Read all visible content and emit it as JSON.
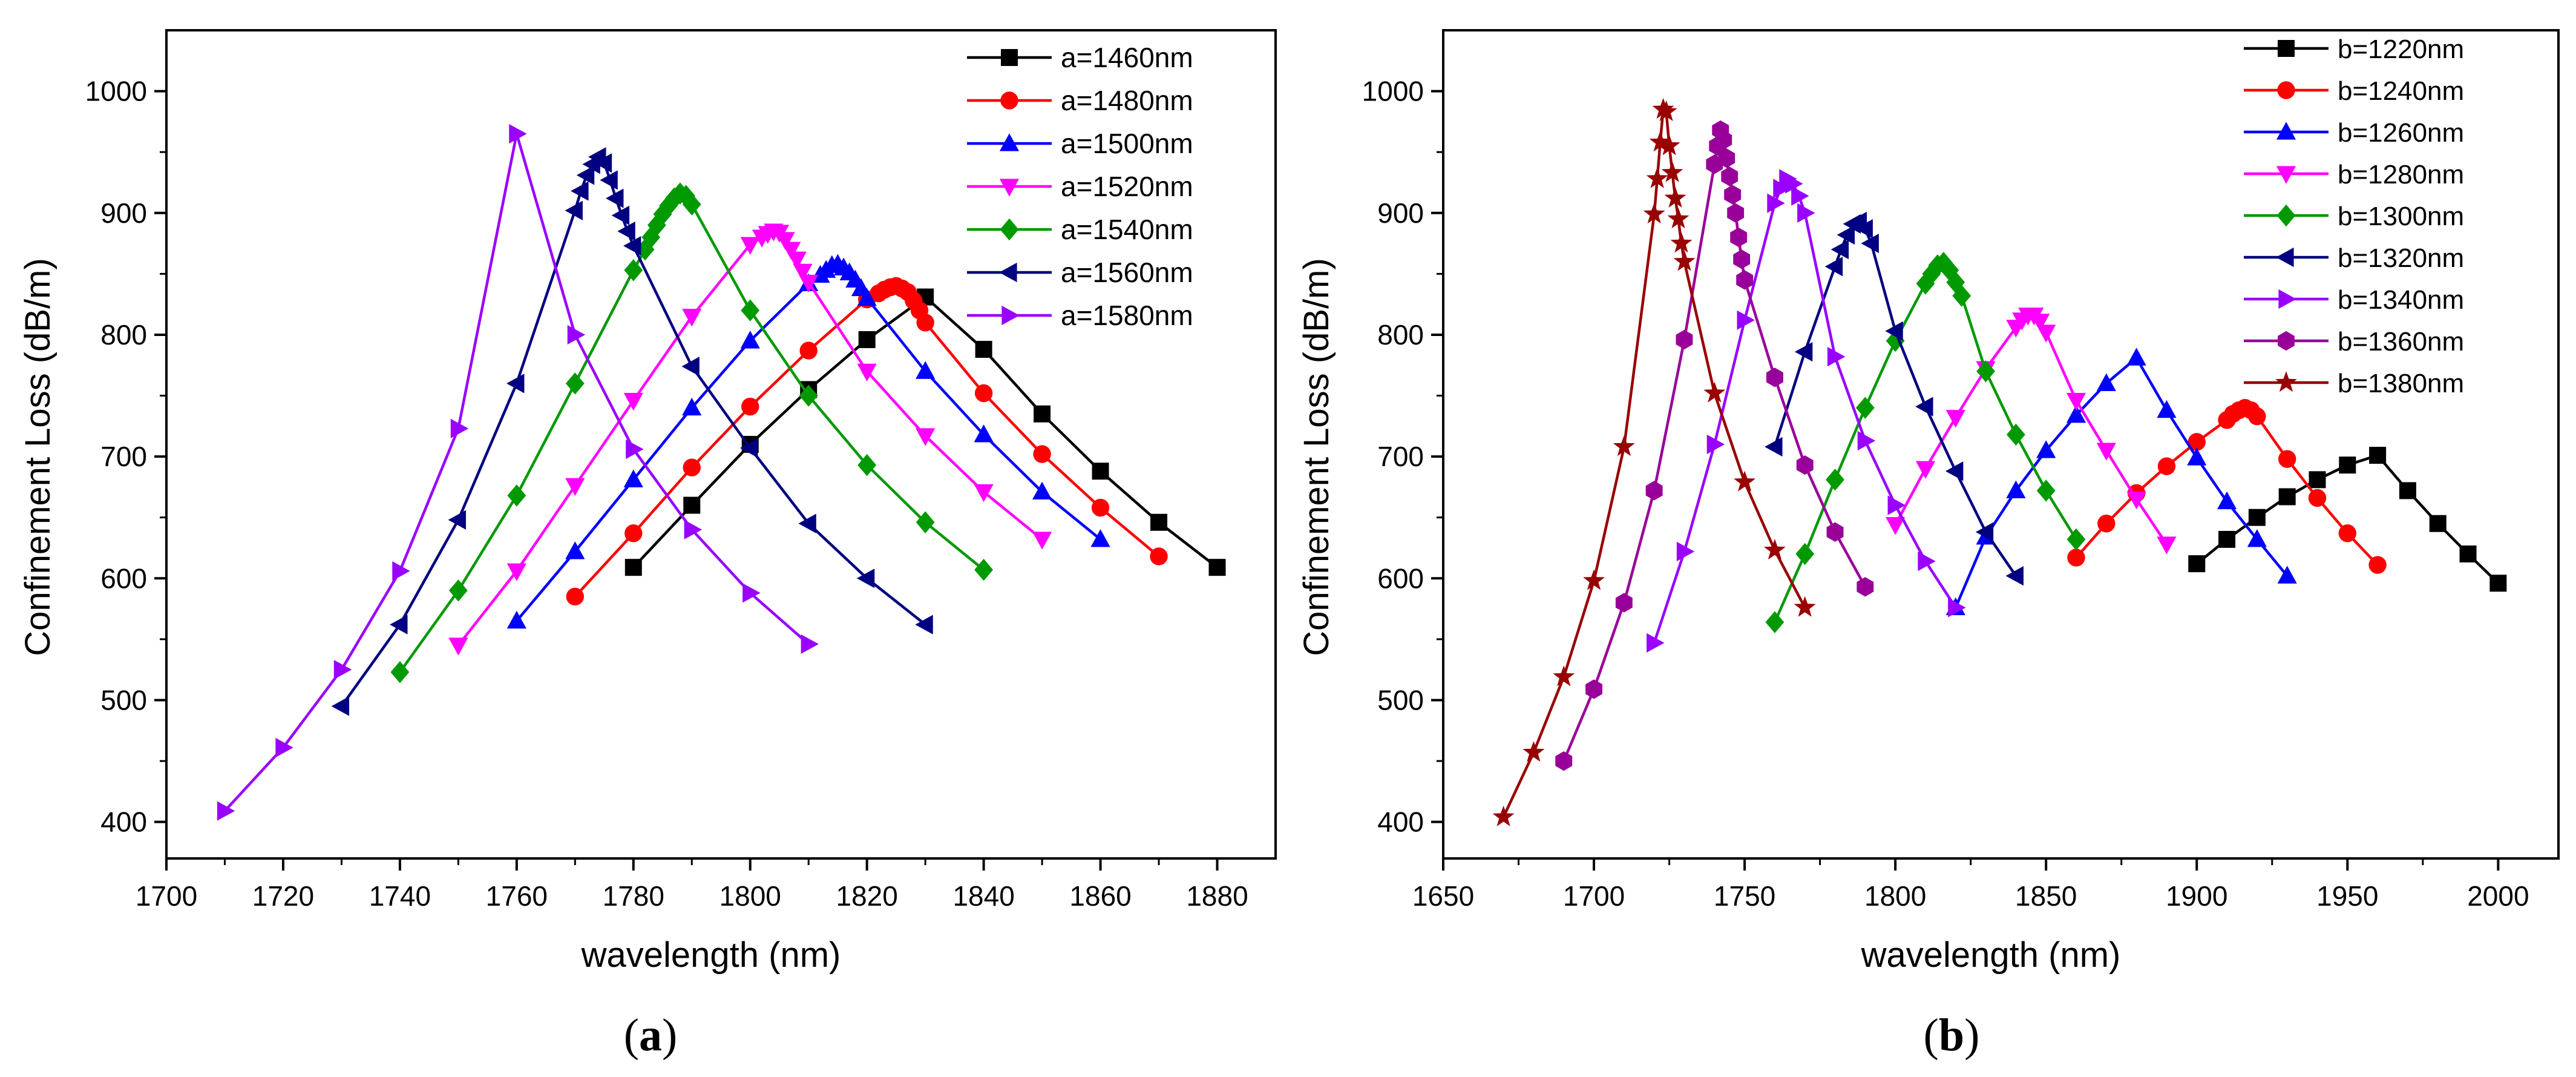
{
  "chart_data": [
    {
      "type": "line",
      "panel_label": "(a)",
      "xlabel": "wavelength (nm)",
      "ylabel": "Confinement  Loss (dB/m)",
      "xlim": [
        1700,
        1890
      ],
      "ylim": [
        370,
        1050
      ],
      "xticks": [
        1700,
        1720,
        1740,
        1760,
        1780,
        1800,
        1820,
        1840,
        1860,
        1880
      ],
      "yticks": [
        400,
        500,
        600,
        700,
        800,
        900,
        1000
      ],
      "grid": false,
      "legend_position": "top-right",
      "series": [
        {
          "name": "a=1460nm",
          "color": "#000000",
          "marker": "square",
          "x": [
            1780,
            1790,
            1800,
            1810,
            1820,
            1830,
            1840,
            1850,
            1860,
            1870,
            1880
          ],
          "y": [
            609,
            660,
            710,
            755,
            796,
            831,
            788,
            735,
            688,
            646,
            609
          ]
        },
        {
          "name": "a=1480nm",
          "color": "#ff0000",
          "marker": "circle",
          "x": [
            1770,
            1780,
            1790,
            1800,
            1810,
            1820,
            1822,
            1823,
            1824,
            1825,
            1826,
            1827,
            1828,
            1829,
            1830,
            1840,
            1850,
            1860,
            1870
          ],
          "y": [
            585,
            637,
            691,
            741,
            787,
            829,
            834,
            837,
            839,
            840,
            838,
            835,
            828,
            820,
            810,
            752,
            702,
            658,
            618
          ]
        },
        {
          "name": "a=1500nm",
          "color": "#0000ff",
          "marker": "triangle-up",
          "x": [
            1760,
            1770,
            1780,
            1790,
            1800,
            1810,
            1812,
            1813,
            1814,
            1815,
            1816,
            1817,
            1818,
            1819,
            1820,
            1830,
            1840,
            1850,
            1860
          ],
          "y": [
            565,
            622,
            681,
            740,
            795,
            842,
            849,
            853,
            857,
            858,
            855,
            851,
            845,
            838,
            830,
            770,
            718,
            671,
            632
          ]
        },
        {
          "name": "a=1520nm",
          "color": "#ff00ff",
          "marker": "triangle-down",
          "x": [
            1750,
            1760,
            1770,
            1780,
            1790,
            1800,
            1802,
            1803,
            1804,
            1805,
            1806,
            1807,
            1808,
            1809,
            1810,
            1820,
            1830,
            1840,
            1850
          ],
          "y": [
            545,
            606,
            676,
            746,
            815,
            874,
            880,
            883,
            885,
            884,
            878,
            870,
            862,
            852,
            843,
            770,
            717,
            671,
            632
          ]
        },
        {
          "name": "a=1540nm",
          "color": "#009900",
          "marker": "diamond",
          "x": [
            1740,
            1750,
            1760,
            1770,
            1780,
            1782,
            1783,
            1784,
            1785,
            1786,
            1787,
            1788,
            1789,
            1790,
            1800,
            1810,
            1820,
            1830,
            1840
          ],
          "y": [
            523,
            590,
            668,
            760,
            853,
            870,
            880,
            890,
            899,
            906,
            912,
            916,
            914,
            907,
            820,
            750,
            693,
            646,
            607
          ]
        },
        {
          "name": "a=1560nm",
          "color": "#000080",
          "marker": "triangle-left",
          "x": [
            1730,
            1740,
            1750,
            1760,
            1770,
            1771,
            1772,
            1773,
            1774,
            1775,
            1776,
            1777,
            1778,
            1779,
            1780,
            1790,
            1800,
            1810,
            1820,
            1830
          ],
          "y": [
            495,
            562,
            648,
            760,
            902,
            918,
            931,
            940,
            946,
            941,
            927,
            912,
            898,
            885,
            873,
            774,
            707,
            645,
            600,
            562
          ]
        },
        {
          "name": "a=1580nm",
          "color": "#9900ff",
          "marker": "triangle-right",
          "x": [
            1710,
            1720,
            1730,
            1740,
            1750,
            1760,
            1770,
            1780,
            1790,
            1800,
            1810
          ],
          "y": [
            409,
            461,
            525,
            606,
            723,
            965,
            800,
            706,
            640,
            588,
            546
          ]
        }
      ]
    },
    {
      "type": "line",
      "panel_label": "(b)",
      "xlabel": "wavelength (nm)",
      "ylabel": "Confinement  Loss (dB/m)",
      "xlim": [
        1650,
        2020
      ],
      "ylim": [
        370,
        1050
      ],
      "xticks": [
        1650,
        1700,
        1750,
        1800,
        1850,
        1900,
        1950,
        2000
      ],
      "yticks": [
        400,
        500,
        600,
        700,
        800,
        900,
        1000
      ],
      "grid": false,
      "legend_position": "top-right",
      "series": [
        {
          "name": "b=1220nm",
          "color": "#000000",
          "marker": "square",
          "x": [
            1900,
            1910,
            1920,
            1930,
            1940,
            1950,
            1960,
            1970,
            1980,
            1990,
            2000
          ],
          "y": [
            612,
            632,
            650,
            667,
            681,
            693,
            701,
            672,
            645,
            620,
            596
          ]
        },
        {
          "name": "b=1240nm",
          "color": "#ff0000",
          "marker": "circle",
          "x": [
            1860,
            1870,
            1880,
            1890,
            1900,
            1910,
            1912,
            1914,
            1916,
            1918,
            1920,
            1930,
            1940,
            1950,
            1960
          ],
          "y": [
            617,
            645,
            670,
            692,
            712,
            730,
            735,
            738,
            740,
            738,
            733,
            698,
            666,
            637,
            611
          ]
        },
        {
          "name": "b=1260nm",
          "color": "#0000ff",
          "marker": "triangle-up",
          "x": [
            1820,
            1830,
            1840,
            1850,
            1860,
            1870,
            1880,
            1890,
            1900,
            1910,
            1920,
            1930
          ],
          "y": [
            576,
            634,
            672,
            705,
            734,
            760,
            781,
            738,
            699,
            663,
            632,
            602
          ]
        },
        {
          "name": "b=1280nm",
          "color": "#ff00ff",
          "marker": "triangle-down",
          "x": [
            1800,
            1810,
            1820,
            1830,
            1840,
            1842,
            1844,
            1846,
            1848,
            1850,
            1860,
            1870,
            1880,
            1890
          ],
          "y": [
            644,
            690,
            732,
            772,
            806,
            812,
            816,
            816,
            811,
            802,
            746,
            705,
            665,
            628
          ]
        },
        {
          "name": "b=1300nm",
          "color": "#009900",
          "marker": "diamond",
          "x": [
            1760,
            1770,
            1780,
            1790,
            1800,
            1810,
            1812,
            1814,
            1816,
            1818,
            1820,
            1822,
            1830,
            1840,
            1850,
            1860
          ],
          "y": [
            564,
            620,
            681,
            740,
            795,
            842,
            850,
            857,
            859,
            853,
            843,
            832,
            770,
            718,
            672,
            632
          ]
        },
        {
          "name": "b=1320nm",
          "color": "#000080",
          "marker": "triangle-left",
          "x": [
            1760,
            1770,
            1780,
            1782,
            1784,
            1786,
            1788,
            1790,
            1792,
            1800,
            1810,
            1820,
            1830,
            1840
          ],
          "y": [
            708,
            786,
            856,
            870,
            882,
            891,
            893,
            887,
            875,
            803,
            741,
            688,
            638,
            602
          ]
        },
        {
          "name": "b=1340nm",
          "color": "#9900ff",
          "marker": "triangle-right",
          "x": [
            1720,
            1730,
            1740,
            1750,
            1760,
            1762,
            1764,
            1766,
            1768,
            1770,
            1780,
            1790,
            1800,
            1810,
            1820
          ],
          "y": [
            547,
            622,
            710,
            812,
            908,
            920,
            928,
            924,
            914,
            900,
            782,
            713,
            660,
            614,
            576
          ]
        },
        {
          "name": "b=1360nm",
          "color": "#990099",
          "marker": "hexagon",
          "x": [
            1690,
            1700,
            1710,
            1720,
            1730,
            1740,
            1741,
            1742,
            1743,
            1744,
            1745,
            1746,
            1747,
            1748,
            1749,
            1750,
            1760,
            1770,
            1780,
            1790
          ],
          "y": [
            450,
            509,
            580,
            672,
            796,
            940,
            955,
            968,
            960,
            945,
            930,
            915,
            900,
            880,
            862,
            845,
            765,
            693,
            638,
            593
          ]
        },
        {
          "name": "b=1380nm",
          "color": "#990000",
          "marker": "star",
          "x": [
            1670,
            1680,
            1690,
            1700,
            1710,
            1720,
            1721,
            1722,
            1723,
            1724,
            1725,
            1726,
            1727,
            1728,
            1729,
            1730,
            1740,
            1750,
            1760,
            1770
          ],
          "y": [
            404,
            457,
            519,
            598,
            708,
            899,
            928,
            958,
            985,
            983,
            955,
            933,
            912,
            895,
            875,
            860,
            752,
            679,
            623,
            576
          ]
        }
      ]
    }
  ]
}
